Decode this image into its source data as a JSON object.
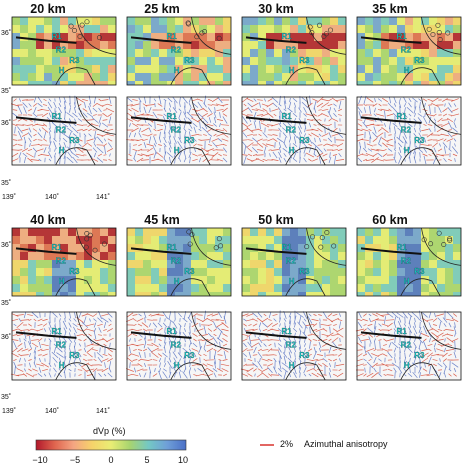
{
  "upper_depths": [
    "20 km",
    "25 km",
    "30 km",
    "35 km"
  ],
  "lower_depths": [
    "40 km",
    "45 km",
    "50 km",
    "60 km"
  ],
  "lat_labels": [
    "36˚",
    "35˚",
    "36˚",
    "35˚",
    "36˚",
    "35˚",
    "36˚",
    "35˚"
  ],
  "lon_labels_top": [
    "139˚",
    "140˚",
    "141˚"
  ],
  "lon_labels_bottom": [
    "139˚",
    "140˚",
    "141˚"
  ],
  "colorbar": {
    "title": "dVp (%)",
    "ticks": [
      "−10",
      "−5",
      "0",
      "5",
      "10"
    ],
    "colors": [
      "#b2182b",
      "#e0654f",
      "#f4a582",
      "#f6d36a",
      "#e9ed74",
      "#a8d46f",
      "#74c8c4",
      "#6f9fd8",
      "#4a6fc7"
    ]
  },
  "legend": {
    "scale": "2%",
    "label": "Azimuthal anisotropy",
    "color": "#d8322d"
  },
  "zone_labels": [
    "R1",
    "R2",
    "R3",
    "H"
  ]
}
